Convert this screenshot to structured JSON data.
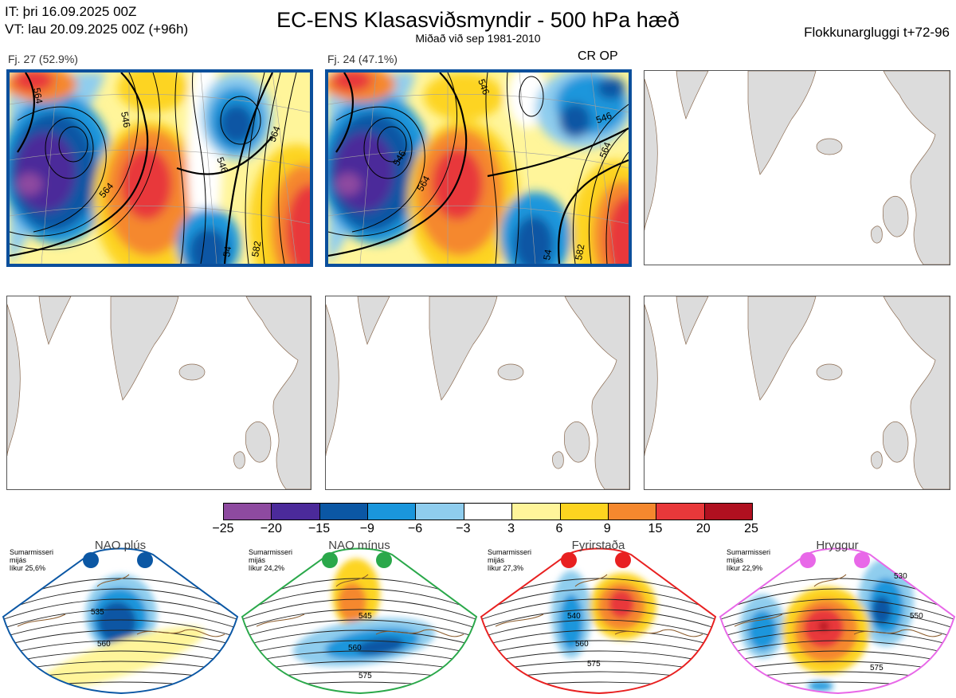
{
  "header": {
    "it_line": "IT: þri 16.09.2025 00Z",
    "vt_line": "VT: lau 20.09.2025 00Z  (+96h)",
    "title": "EC-ENS Klasasviðsmyndir - 500 hPa hæð",
    "subtitle": "Miðað við sep 1981-2010",
    "window": "Flokkunargluggi t+72-96"
  },
  "clusters": [
    {
      "label": "Fj. 27 (52.9%)",
      "contours": [
        "546",
        "564",
        "546",
        "564",
        "564",
        "582",
        "54"
      ]
    },
    {
      "label": "Fj. 24 (47.1%)",
      "badge": "CR OP",
      "contours": [
        "546",
        "546",
        "546",
        "564",
        "564",
        "582",
        "54"
      ]
    }
  ],
  "colorbar": {
    "colors": [
      "#8e4aa0",
      "#4b2a9a",
      "#0b57a4",
      "#1a96dc",
      "#8fcdee",
      "#ffffff",
      "#fff59a",
      "#fdd420",
      "#f5882e",
      "#e8383a",
      "#b01020"
    ],
    "ticks": [
      "−25",
      "−20",
      "−15",
      "−9",
      "−6",
      "−3",
      "3",
      "6",
      "9",
      "15",
      "20",
      "25"
    ]
  },
  "regimes": [
    {
      "name": "NAO plús",
      "season": "Sumarmisseri",
      "note": "mijás",
      "likelihood": "líkur 25,6%",
      "color": "#0b57a4",
      "labels": [
        "535",
        "560"
      ]
    },
    {
      "name": "NAO mínus",
      "season": "Sumarmisseri",
      "note": "mijás",
      "likelihood": "líkur 24,2%",
      "color": "#2aa84a",
      "labels": [
        "545",
        "560",
        "575"
      ]
    },
    {
      "name": "Fyrirstaða",
      "season": "Sumarmisseri",
      "note": "mijás",
      "likelihood": "líkur 27,3%",
      "color": "#e82020",
      "labels": [
        "540",
        "560",
        "575"
      ]
    },
    {
      "name": "Hryggur",
      "season": "Sumarmisseri",
      "note": "mijás",
      "likelihood": "líkur 22,9%",
      "color": "#e868e8",
      "labels": [
        "530",
        "550",
        "575"
      ]
    }
  ]
}
